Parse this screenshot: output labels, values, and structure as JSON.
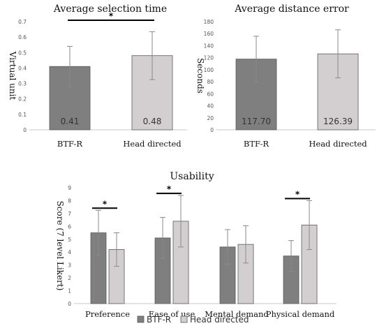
{
  "colors": {
    "btf": "#7f7f7f",
    "head": "#d3cfd0",
    "bar_stroke": "#595959"
  },
  "chart_data": [
    {
      "type": "bar",
      "title": "Average selection time",
      "ylabel": "Virtual unit",
      "ylim": [
        0,
        0.7
      ],
      "yticks": [
        "0",
        "0.1",
        "0.2",
        "0.3",
        "0.4",
        "0.5",
        "0.6",
        "0.7"
      ],
      "categories": [
        "BTF-R",
        "Head directed"
      ],
      "values": [
        0.41,
        0.48
      ],
      "value_labels": [
        "0.41",
        "0.48"
      ],
      "errors": [
        0.13,
        0.155
      ],
      "significance": [
        {
          "from": 0,
          "to": 1,
          "label": "*"
        }
      ]
    },
    {
      "type": "bar",
      "title": "Average distance error",
      "ylabel": "Seconds",
      "ylim": [
        0,
        180
      ],
      "yticks": [
        "0",
        "20",
        "40",
        "60",
        "80",
        "100",
        "120",
        "140",
        "160",
        "180"
      ],
      "categories": [
        "BTF-R",
        "Head directed"
      ],
      "values": [
        117.7,
        126.39
      ],
      "value_labels": [
        "117.70",
        "126.39"
      ],
      "errors": [
        38,
        40
      ],
      "significance": []
    },
    {
      "type": "bar",
      "title": "Usability",
      "ylabel": "Score (7 level Likert)",
      "ylim": [
        0,
        9
      ],
      "yticks": [
        "0",
        "1",
        "2",
        "3",
        "4",
        "5",
        "6",
        "7",
        "8",
        "9"
      ],
      "categories": [
        "Preference",
        "Ease of use",
        "Mental demand",
        "Physical demand"
      ],
      "series": [
        {
          "name": "BTF-R",
          "values": [
            5.5,
            5.1,
            4.4,
            3.7
          ],
          "errors": [
            1.75,
            1.6,
            1.35,
            1.2
          ]
        },
        {
          "name": "Head directed",
          "values": [
            4.2,
            6.4,
            4.6,
            6.1
          ],
          "errors": [
            1.3,
            2.0,
            1.45,
            1.9
          ]
        }
      ],
      "significance_labels": [
        "*",
        "*",
        "",
        "*"
      ],
      "legend": [
        "BTF-R",
        "Head directed"
      ]
    }
  ]
}
